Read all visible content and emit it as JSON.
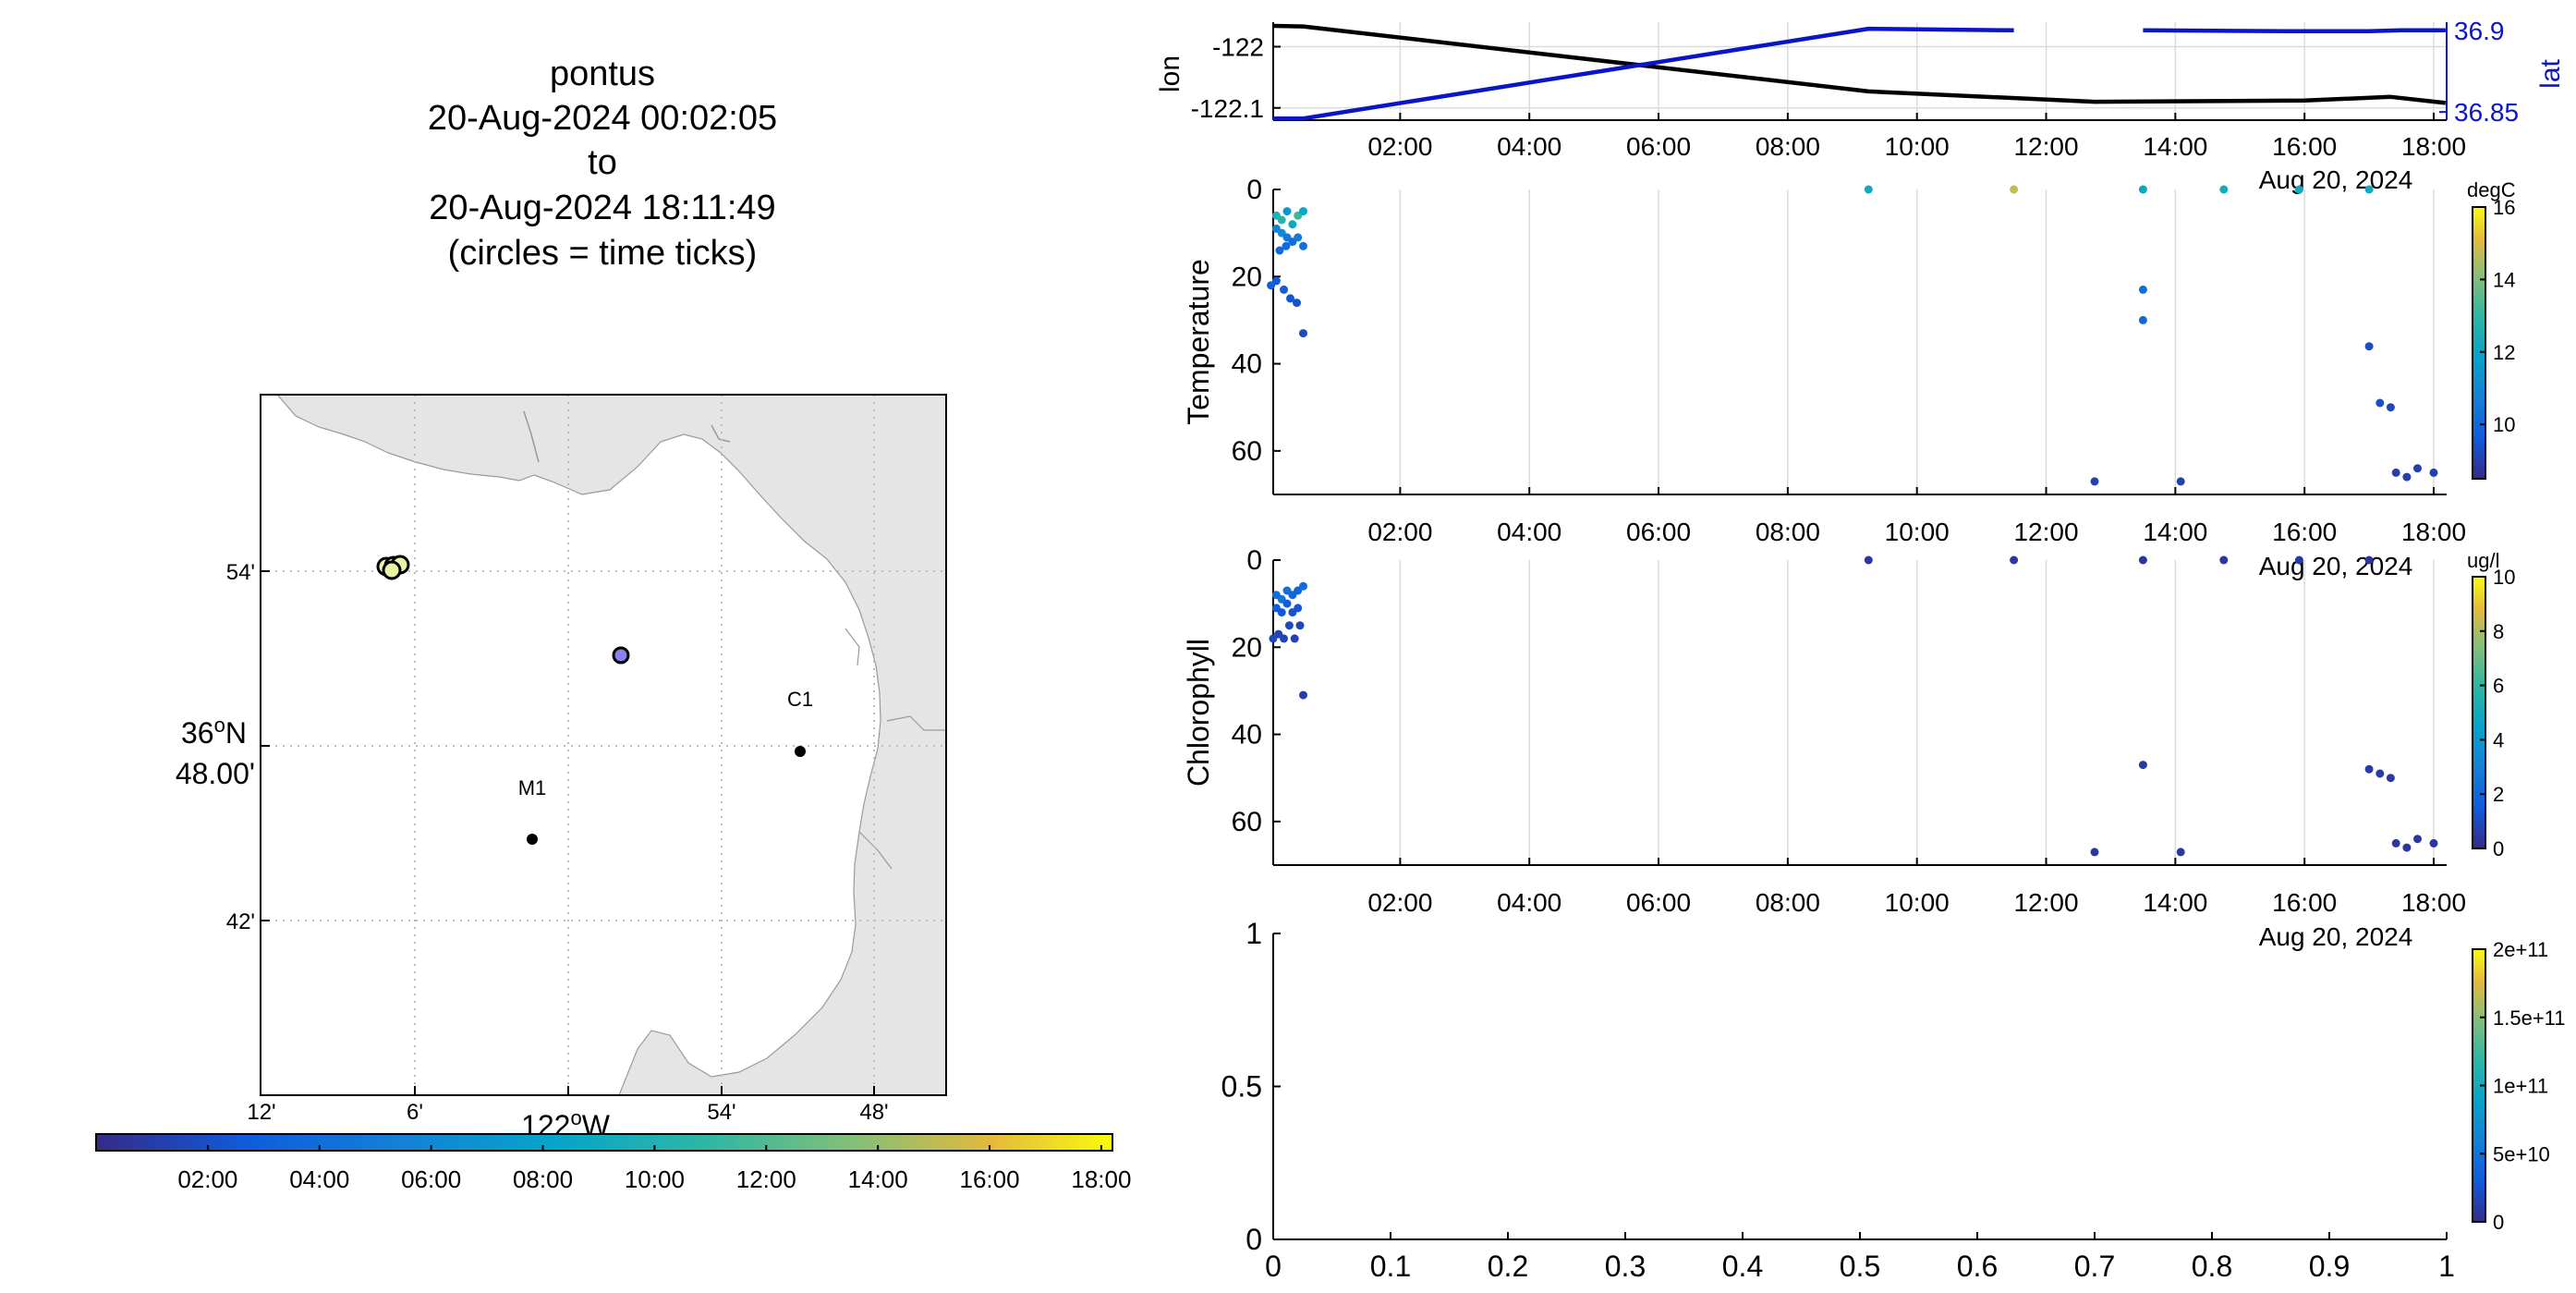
{
  "header": {
    "platform": "pontus",
    "start": "20-Aug-2024 00:02:05",
    "to": "to",
    "end": "20-Aug-2024 18:11:49",
    "note": "(circles = time ticks)"
  },
  "map": {
    "lat_ticks": [
      "54'",
      "36°N 48.00'",
      "42'"
    ],
    "lat_deg_label": "36",
    "lat_deg_sup": "o",
    "lat_deg_suffix": "N",
    "lat_min_label": "48.00'",
    "lon_ticks": [
      "12'",
      "6'",
      "54'",
      "48'"
    ],
    "lon_deg_label": "122",
    "lon_deg_sup": "o",
    "lon_deg_suffix": "W",
    "stations": [
      {
        "name": "C1"
      },
      {
        "name": "M1"
      }
    ],
    "colorbar_ticks": [
      "02:00",
      "04:00",
      "06:00",
      "08:00",
      "10:00",
      "12:00",
      "14:00",
      "16:00",
      "18:00"
    ]
  },
  "colors": {
    "lon_line": "#000000",
    "lat_line": "#0a14c8",
    "land": "#e5e5e5",
    "grid": "#d9d9d9"
  },
  "chart_data": [
    {
      "type": "line",
      "ylabel": "lon",
      "y2label": "lat",
      "x_ticks": [
        "02:00",
        "04:00",
        "06:00",
        "08:00",
        "10:00",
        "12:00",
        "14:00",
        "16:00",
        "18:00"
      ],
      "date_label": "Aug 20, 2024",
      "y_ticks": [
        "-122",
        "-122.1"
      ],
      "y2_ticks": [
        "36.9",
        "36.85"
      ],
      "ylim": [
        -122.12,
        -121.96
      ],
      "y2lim": [
        36.845,
        36.905
      ],
      "series": [
        {
          "axis": "lon",
          "points": [
            [
              "00:02",
              -121.966
            ],
            [
              "00:30",
              -121.967
            ],
            [
              "09:15",
              -122.073
            ],
            [
              "12:45",
              -122.09
            ],
            [
              "16:00",
              -122.088
            ],
            [
              "17:20",
              -122.082
            ],
            [
              "18:11",
              -122.092
            ]
          ]
        },
        {
          "axis": "lat",
          "points": [
            [
              "00:02",
              36.846
            ],
            [
              "00:30",
              36.846
            ],
            [
              "09:15",
              36.901
            ],
            [
              "11:30",
              36.9
            ]
          ]
        },
        {
          "axis": "lat",
          "points": [
            [
              "13:30",
              36.9
            ],
            [
              "15:45",
              36.8995
            ],
            [
              "17:00",
              36.8995
            ],
            [
              "17:30",
              36.9
            ],
            [
              "18:11",
              36.9
            ]
          ]
        }
      ]
    },
    {
      "type": "scatter",
      "ylabel": "Temperature",
      "colorbar_label": "degC",
      "colorbar_ticks": [
        "16",
        "14",
        "12",
        "10"
      ],
      "clim": [
        8.5,
        16
      ],
      "x_ticks": [
        "02:00",
        "04:00",
        "06:00",
        "08:00",
        "10:00",
        "12:00",
        "14:00",
        "16:00",
        "18:00"
      ],
      "date_label": "Aug 20, 2024",
      "y_ticks": [
        "0",
        "20",
        "40",
        "60"
      ],
      "ylim": [
        0,
        70
      ],
      "points": [
        [
          "00:05",
          6,
          12.5
        ],
        [
          "00:10",
          7,
          12.8
        ],
        [
          "00:15",
          5,
          11.5
        ],
        [
          "00:20",
          8,
          12.2
        ],
        [
          "00:25",
          6,
          13.2
        ],
        [
          "00:30",
          5,
          12.0
        ],
        [
          "00:05",
          9,
          10.8
        ],
        [
          "00:10",
          10,
          11.0
        ],
        [
          "00:15",
          11,
          10.5
        ],
        [
          "00:20",
          12,
          10.2
        ],
        [
          "00:25",
          11,
          10.6
        ],
        [
          "00:30",
          13,
          10.3
        ],
        [
          "00:08",
          14,
          10.0
        ],
        [
          "00:14",
          13,
          10.1
        ],
        [
          "00:00",
          22,
          9.8
        ],
        [
          "00:05",
          21,
          9.6
        ],
        [
          "00:12",
          23,
          9.7
        ],
        [
          "00:18",
          25,
          9.5
        ],
        [
          "00:24",
          26,
          9.4
        ],
        [
          "00:30",
          33,
          9.2
        ],
        [
          "09:15",
          0,
          12.2
        ],
        [
          "11:30",
          0,
          14.8
        ],
        [
          "13:30",
          0,
          12.0
        ],
        [
          "14:45",
          0,
          12.3
        ],
        [
          "15:55",
          0,
          12.1
        ],
        [
          "17:00",
          0,
          12.2
        ],
        [
          "13:30",
          23,
          10.2
        ],
        [
          "13:30",
          30,
          10.0
        ],
        [
          "17:00",
          36,
          9.3
        ],
        [
          "17:10",
          49,
          9.3
        ],
        [
          "17:20",
          50,
          9.2
        ],
        [
          "17:25",
          65,
          9.0
        ],
        [
          "17:35",
          66,
          9.0
        ],
        [
          "17:45",
          64,
          9.0
        ],
        [
          "18:00",
          65,
          9.0
        ],
        [
          "12:45",
          67,
          9.0
        ],
        [
          "14:05",
          67,
          9.0
        ]
      ]
    },
    {
      "type": "scatter",
      "ylabel": "Chlorophyll",
      "colorbar_label": "ug/l",
      "colorbar_ticks": [
        "10",
        "8",
        "6",
        "4",
        "2",
        "0"
      ],
      "clim": [
        0,
        10
      ],
      "x_ticks": [
        "02:00",
        "04:00",
        "06:00",
        "08:00",
        "10:00",
        "12:00",
        "14:00",
        "16:00",
        "18:00"
      ],
      "date_label": "Aug 20, 2024",
      "y_ticks": [
        "0",
        "20",
        "40",
        "60"
      ],
      "ylim": [
        0,
        70
      ],
      "points": [
        [
          "00:05",
          8,
          2.2
        ],
        [
          "00:10",
          9,
          2.5
        ],
        [
          "00:15",
          7,
          2.3
        ],
        [
          "00:20",
          8,
          2.0
        ],
        [
          "00:25",
          7,
          1.8
        ],
        [
          "00:30",
          6,
          2.1
        ],
        [
          "00:05",
          11,
          1.5
        ],
        [
          "00:10",
          12,
          1.4
        ],
        [
          "00:15",
          10,
          1.6
        ],
        [
          "00:20",
          12,
          1.2
        ],
        [
          "00:25",
          11,
          1.3
        ],
        [
          "00:02",
          18,
          0.9
        ],
        [
          "00:07",
          17,
          0.8
        ],
        [
          "00:12",
          18,
          0.8
        ],
        [
          "00:17",
          15,
          0.9
        ],
        [
          "00:22",
          18,
          0.7
        ],
        [
          "00:27",
          15,
          0.8
        ],
        [
          "00:30",
          31,
          0.6
        ],
        [
          "09:15",
          0,
          0.4
        ],
        [
          "11:30",
          0,
          0.4
        ],
        [
          "13:30",
          0,
          0.4
        ],
        [
          "14:45",
          0,
          0.4
        ],
        [
          "15:55",
          0,
          0.5
        ],
        [
          "17:00",
          0,
          0.4
        ],
        [
          "13:30",
          47,
          0.5
        ],
        [
          "17:00",
          48,
          0.5
        ],
        [
          "17:10",
          49,
          0.5
        ],
        [
          "17:20",
          50,
          0.5
        ],
        [
          "17:25",
          65,
          0.4
        ],
        [
          "17:35",
          66,
          0.4
        ],
        [
          "17:45",
          64,
          0.4
        ],
        [
          "18:00",
          65,
          0.4
        ],
        [
          "12:45",
          67,
          0.4
        ],
        [
          "14:05",
          67,
          0.4
        ]
      ]
    },
    {
      "type": "scatter",
      "x_ticks": [
        "0",
        "0.1",
        "0.2",
        "0.3",
        "0.4",
        "0.5",
        "0.6",
        "0.7",
        "0.8",
        "0.9",
        "1"
      ],
      "y_ticks": [
        "0",
        "0.5",
        "1"
      ],
      "xlim": [
        0,
        1
      ],
      "ylim": [
        0,
        1
      ],
      "colorbar_ticks": [
        "2e+11",
        "1.5e+11",
        "1e+11",
        "5e+10",
        "0"
      ],
      "clim": [
        0,
        200000000000
      ],
      "points": []
    }
  ]
}
